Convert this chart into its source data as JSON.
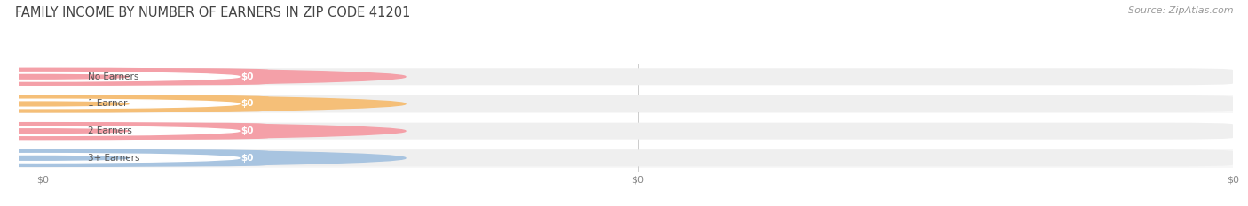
{
  "title": "FAMILY INCOME BY NUMBER OF EARNERS IN ZIP CODE 41201",
  "source": "Source: ZipAtlas.com",
  "categories": [
    "No Earners",
    "1 Earner",
    "2 Earners",
    "3+ Earners"
  ],
  "values": [
    0,
    0,
    0,
    0
  ],
  "bar_colors": [
    "#f4a0a8",
    "#f5bf78",
    "#f4a0a8",
    "#a8c4e0"
  ],
  "bar_bg_color": "#efefef",
  "row_bg_colors": [
    "#ffffff",
    "#f7f7f7",
    "#ffffff",
    "#f7f7f7"
  ],
  "label_color": "#555555",
  "value_label_color": "#ffffff",
  "title_color": "#444444",
  "source_color": "#999999",
  "background_color": "#ffffff",
  "tick_label_color": "#888888"
}
